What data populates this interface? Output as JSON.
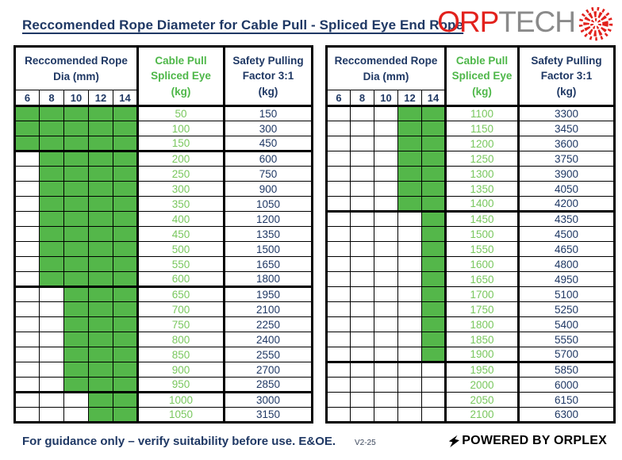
{
  "title": "Reccomended Rope Diameter for Cable Pull - Spliced Eye End Rope",
  "logo": {
    "text_red": "ORP",
    "text_gray": "TECH",
    "icon": "rope-cross-section-icon",
    "red": "#e2211c",
    "gray": "#8a8a8a"
  },
  "colors": {
    "navy": "#1f3864",
    "green_fill": "#54b74a",
    "green_header_text": "#4eb749",
    "green_value_text": "#79c75e",
    "border": "#000000"
  },
  "table_headers": {
    "dia_title_lines": [
      "Reccomended Rope",
      "Dia (mm)"
    ],
    "dia_columns": [
      "6",
      "8",
      "10",
      "12",
      "14"
    ],
    "pull_title_lines": [
      "Cable Pull",
      "Spliced Eye",
      "(kg)"
    ],
    "safety_title_lines": [
      "Safety Pulling",
      "Factor 3:1",
      "(kg)"
    ]
  },
  "tables": [
    {
      "name": "left",
      "rows": [
        {
          "pull": "50",
          "safety": "150",
          "min_dia_index": 0
        },
        {
          "pull": "100",
          "safety": "300",
          "min_dia_index": 0
        },
        {
          "pull": "150",
          "safety": "450",
          "min_dia_index": 0
        },
        {
          "pull": "200",
          "safety": "600",
          "min_dia_index": 1
        },
        {
          "pull": "250",
          "safety": "750",
          "min_dia_index": 1
        },
        {
          "pull": "300",
          "safety": "900",
          "min_dia_index": 1
        },
        {
          "pull": "350",
          "safety": "1050",
          "min_dia_index": 1
        },
        {
          "pull": "400",
          "safety": "1200",
          "min_dia_index": 1
        },
        {
          "pull": "450",
          "safety": "1350",
          "min_dia_index": 1
        },
        {
          "pull": "500",
          "safety": "1500",
          "min_dia_index": 1
        },
        {
          "pull": "550",
          "safety": "1650",
          "min_dia_index": 1
        },
        {
          "pull": "600",
          "safety": "1800",
          "min_dia_index": 1
        },
        {
          "pull": "650",
          "safety": "1950",
          "min_dia_index": 2
        },
        {
          "pull": "700",
          "safety": "2100",
          "min_dia_index": 2
        },
        {
          "pull": "750",
          "safety": "2250",
          "min_dia_index": 2
        },
        {
          "pull": "800",
          "safety": "2400",
          "min_dia_index": 2
        },
        {
          "pull": "850",
          "safety": "2550",
          "min_dia_index": 2
        },
        {
          "pull": "900",
          "safety": "2700",
          "min_dia_index": 2
        },
        {
          "pull": "950",
          "safety": "2850",
          "min_dia_index": 2
        },
        {
          "pull": "1000",
          "safety": "3000",
          "min_dia_index": 3
        },
        {
          "pull": "1050",
          "safety": "3150",
          "min_dia_index": 3
        }
      ]
    },
    {
      "name": "right",
      "rows": [
        {
          "pull": "1100",
          "safety": "3300",
          "min_dia_index": 3
        },
        {
          "pull": "1150",
          "safety": "3450",
          "min_dia_index": 3
        },
        {
          "pull": "1200",
          "safety": "3600",
          "min_dia_index": 3
        },
        {
          "pull": "1250",
          "safety": "3750",
          "min_dia_index": 3
        },
        {
          "pull": "1300",
          "safety": "3900",
          "min_dia_index": 3
        },
        {
          "pull": "1350",
          "safety": "4050",
          "min_dia_index": 3
        },
        {
          "pull": "1400",
          "safety": "4200",
          "min_dia_index": 3
        },
        {
          "pull": "1450",
          "safety": "4350",
          "min_dia_index": 4
        },
        {
          "pull": "1500",
          "safety": "4500",
          "min_dia_index": 4
        },
        {
          "pull": "1550",
          "safety": "4650",
          "min_dia_index": 4
        },
        {
          "pull": "1600",
          "safety": "4800",
          "min_dia_index": 4
        },
        {
          "pull": "1650",
          "safety": "4950",
          "min_dia_index": 4
        },
        {
          "pull": "1700",
          "safety": "5100",
          "min_dia_index": 4
        },
        {
          "pull": "1750",
          "safety": "5250",
          "min_dia_index": 4
        },
        {
          "pull": "1800",
          "safety": "5400",
          "min_dia_index": 4
        },
        {
          "pull": "1850",
          "safety": "5550",
          "min_dia_index": 4
        },
        {
          "pull": "1900",
          "safety": "5700",
          "min_dia_index": 4
        },
        {
          "pull": "1950",
          "safety": "5850",
          "min_dia_index": 5
        },
        {
          "pull": "2000",
          "safety": "6000",
          "min_dia_index": 5
        },
        {
          "pull": "2050",
          "safety": "6150",
          "min_dia_index": 5
        },
        {
          "pull": "2100",
          "safety": "6300",
          "min_dia_index": 5
        }
      ]
    }
  ],
  "footer": {
    "disclaimer": "For guidance only – verify suitability before use. E&OE.",
    "version": "V2-25",
    "powered_by": "POWERED BY ORPLEX"
  }
}
